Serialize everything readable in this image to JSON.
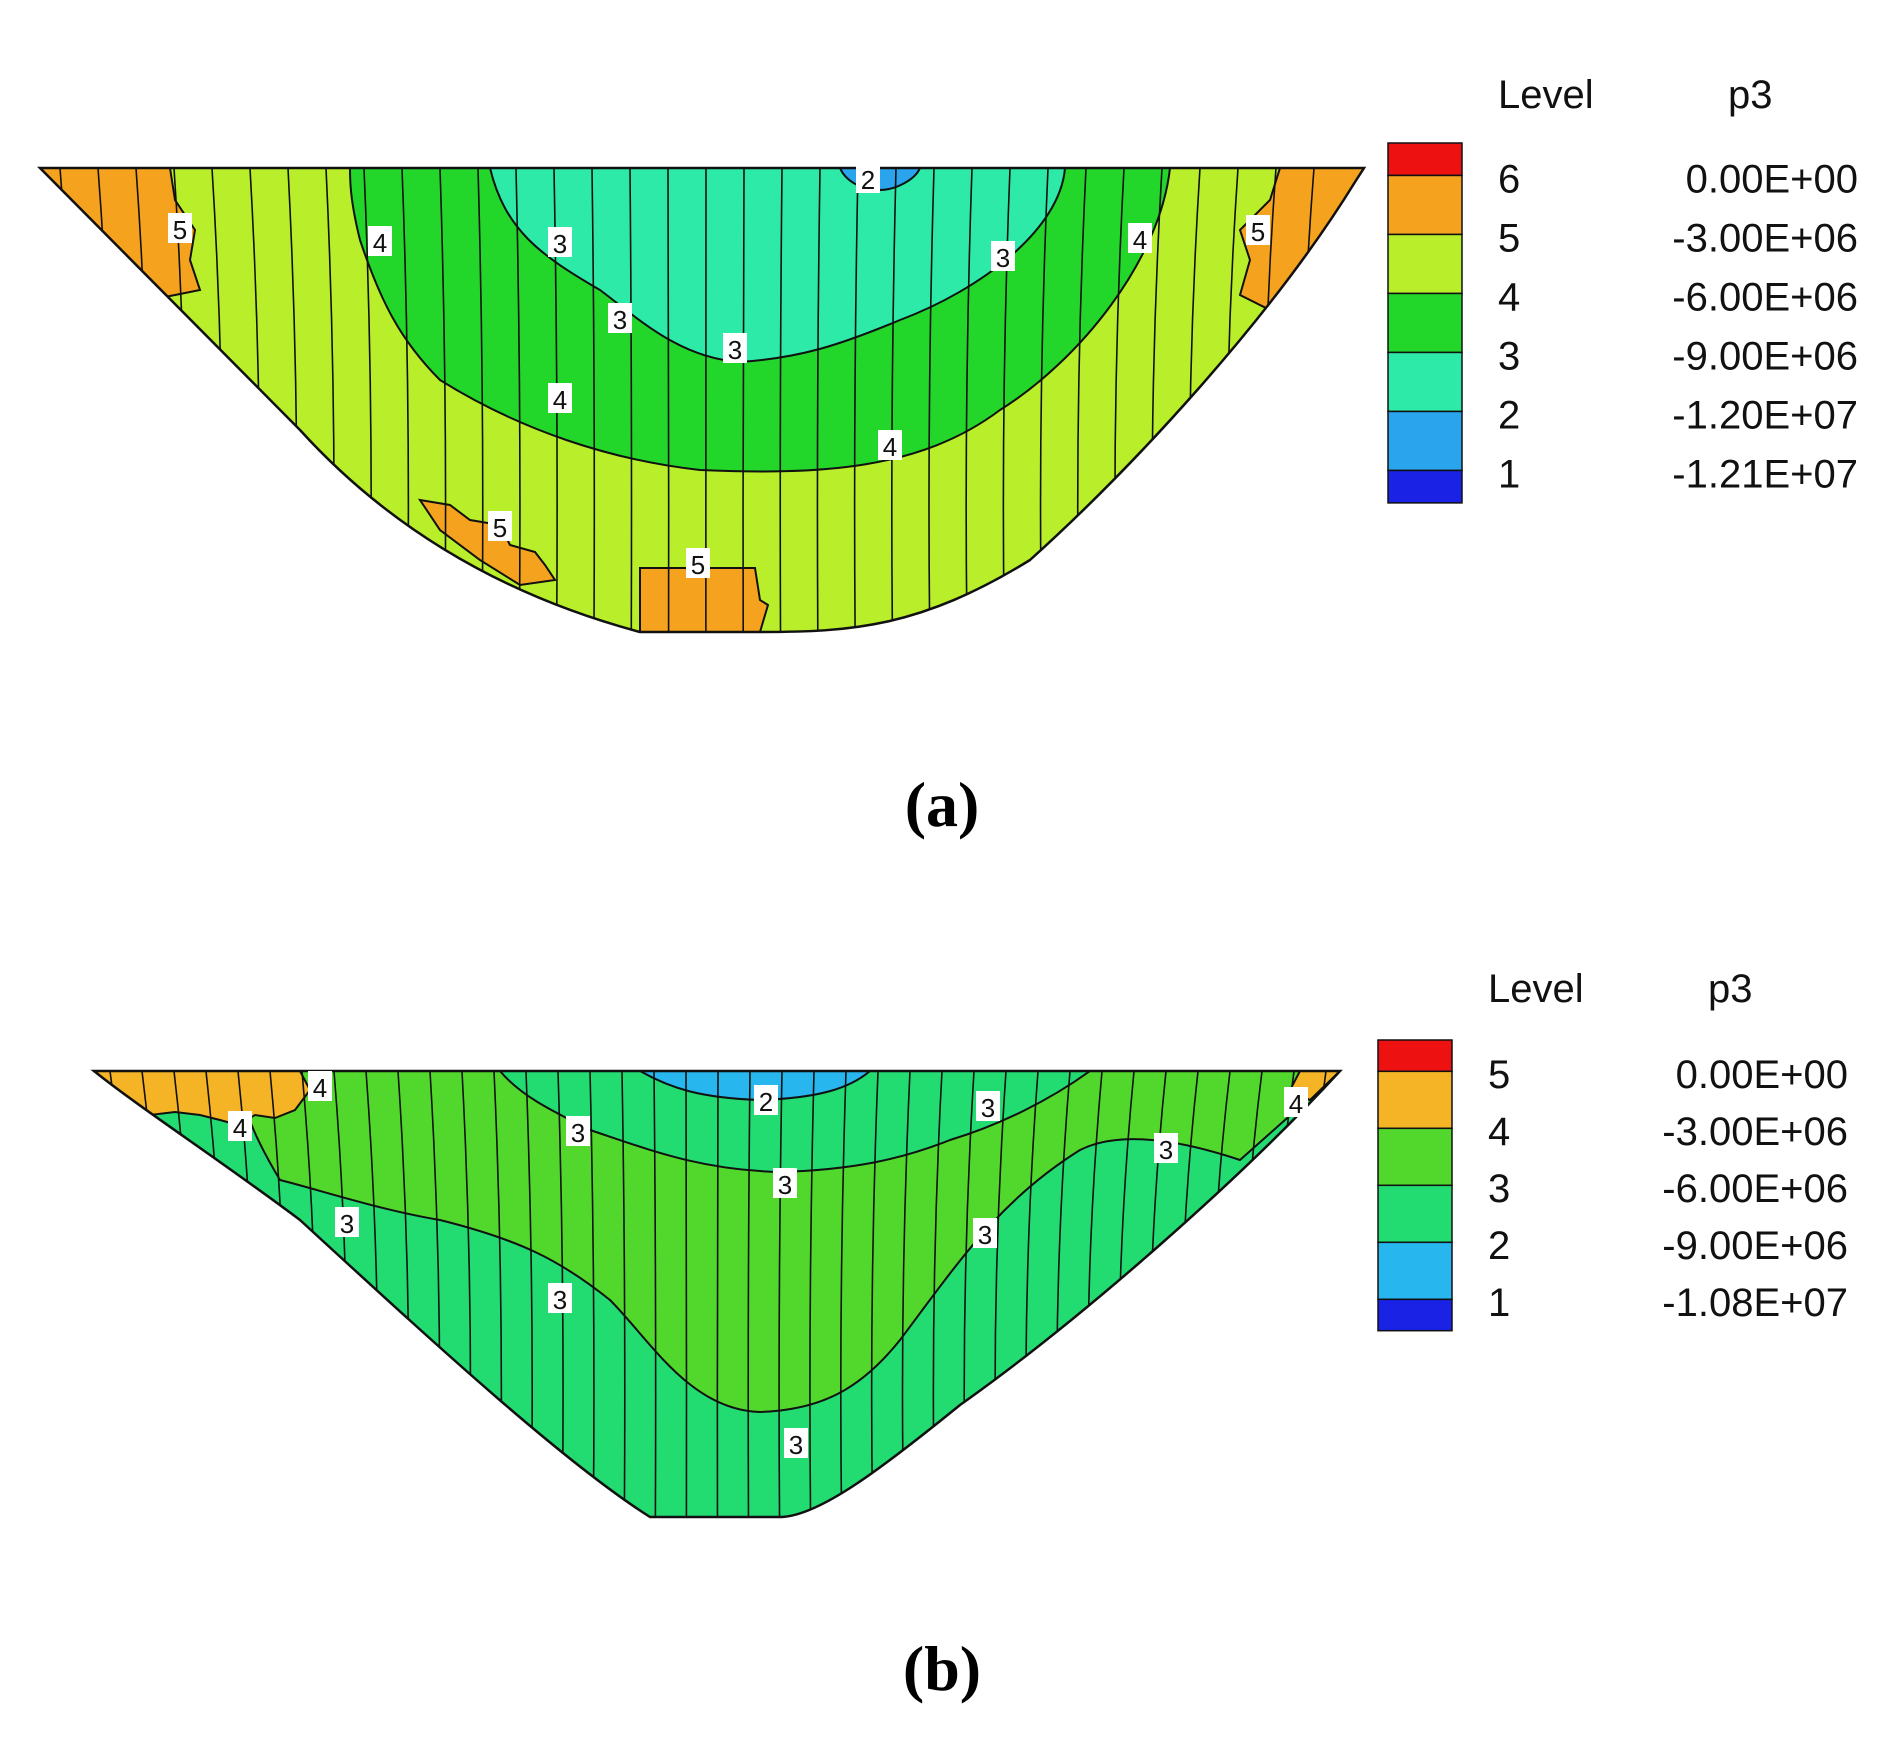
{
  "chart_data": [
    {
      "type": "contour",
      "caption": "(a)",
      "legend": {
        "header_level": "Level",
        "header_var": "p3",
        "levels": [
          6,
          5,
          4,
          3,
          2,
          1
        ],
        "values": [
          "0.00E+00",
          "-3.00E+06",
          "-6.00E+06",
          "-9.00E+06",
          "-1.20E+07",
          "-1.21E+07"
        ],
        "colors": [
          "#ee1111",
          "#f5a21f",
          "#b8ee2a",
          "#22d62a",
          "#2eeaa8",
          "#2aa4ec",
          "#1a22e6"
        ]
      },
      "contour_labels": [
        "2",
        "3",
        "3",
        "3",
        "3",
        "4",
        "4",
        "4",
        "4",
        "5",
        "5",
        "5",
        "5"
      ]
    },
    {
      "type": "contour",
      "caption": "(b)",
      "legend": {
        "header_level": "Level",
        "header_var": "p3",
        "levels": [
          5,
          4,
          3,
          2,
          1
        ],
        "values": [
          "0.00E+00",
          "-3.00E+06",
          "-6.00E+06",
          "-9.00E+06",
          "-1.08E+07"
        ],
        "colors": [
          "#ee1111",
          "#f5b426",
          "#52d82c",
          "#22dc72",
          "#27b7ee",
          "#1a22e6"
        ]
      },
      "contour_labels": [
        "2",
        "3",
        "3",
        "3",
        "3",
        "3",
        "3",
        "3",
        "3",
        "4",
        "4",
        "4"
      ]
    }
  ]
}
